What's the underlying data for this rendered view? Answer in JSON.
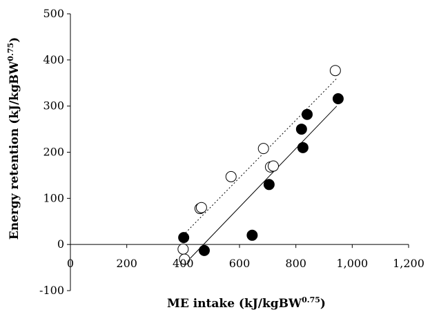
{
  "chart_data": {
    "type": "scatter",
    "xlabel": "ME intake (kJ/kgBW",
    "xlabel_sup": "0.75",
    "xlabel_end": ")",
    "ylabel": "Energy retention (kJ/kgBW",
    "ylabel_sup": "0.75",
    "ylabel_end": ")",
    "xlim": [
      0,
      1200
    ],
    "ylim": [
      -100,
      500
    ],
    "x_ticks": [
      0,
      200,
      400,
      600,
      800,
      1000,
      1200
    ],
    "x_tick_labels": [
      "0",
      "200",
      "400",
      "600",
      "800",
      "1,000",
      "1,200"
    ],
    "y_ticks": [
      -100,
      0,
      100,
      200,
      300,
      400,
      500
    ],
    "y_tick_labels": [
      "-100",
      "0",
      "100",
      "200",
      "300",
      "400",
      "500"
    ],
    "grid": false,
    "legend": "none",
    "colors": {
      "open_marker_fill": "#ffffff",
      "filled_marker_fill": "#000000",
      "stroke": "#000000"
    },
    "series": [
      {
        "marker": "open-circle",
        "trendline": "dotted",
        "points": [
          {
            "x": 400,
            "y": -10
          },
          {
            "x": 405,
            "y": -32
          },
          {
            "x": 460,
            "y": 78
          },
          {
            "x": 465,
            "y": 80
          },
          {
            "x": 570,
            "y": 147
          },
          {
            "x": 685,
            "y": 208
          },
          {
            "x": 710,
            "y": 168
          },
          {
            "x": 720,
            "y": 170
          },
          {
            "x": 940,
            "y": 377
          }
        ],
        "fit": {
          "x": [
            400,
            945
          ],
          "y": [
            20,
            360
          ]
        }
      },
      {
        "marker": "filled-circle",
        "trendline": "solid",
        "points": [
          {
            "x": 402,
            "y": 15
          },
          {
            "x": 475,
            "y": -13
          },
          {
            "x": 645,
            "y": 20
          },
          {
            "x": 705,
            "y": 130
          },
          {
            "x": 820,
            "y": 250
          },
          {
            "x": 825,
            "y": 210
          },
          {
            "x": 840,
            "y": 282
          },
          {
            "x": 950,
            "y": 316
          }
        ],
        "fit": {
          "x": [
            425,
            945
          ],
          "y": [
            -30,
            300
          ]
        }
      }
    ]
  }
}
